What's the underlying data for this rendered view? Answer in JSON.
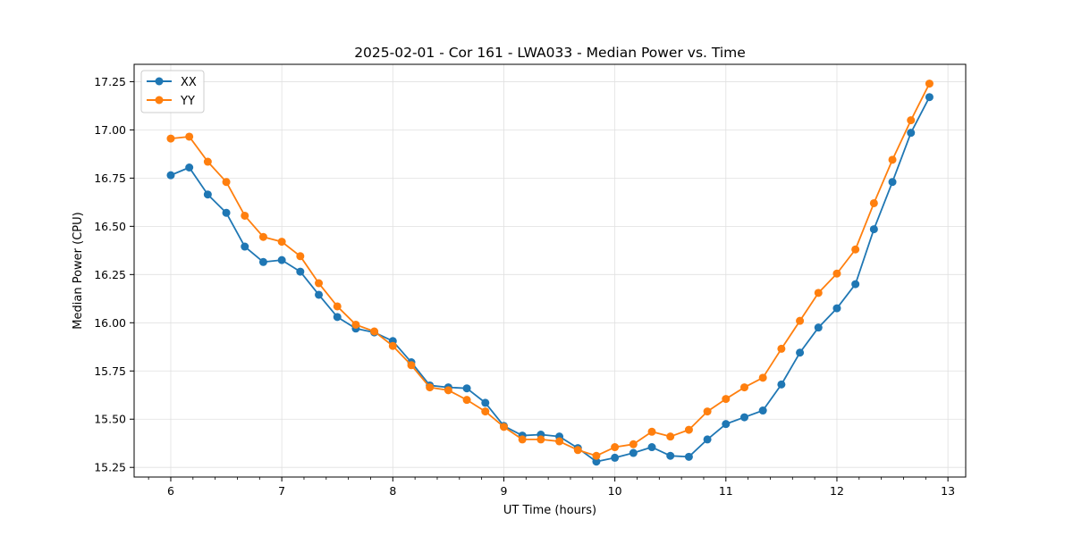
{
  "chart_data": {
    "type": "line",
    "title": "2025-02-01 - Cor 161 - LWA033 - Median Power vs. Time",
    "xlabel": "UT Time (hours)",
    "ylabel": "Median Power (CPU)",
    "xlim": [
      5.67,
      13.16
    ],
    "ylim": [
      15.2,
      17.34
    ],
    "xticks": [
      6,
      7,
      8,
      9,
      10,
      11,
      12,
      13
    ],
    "xtick_labels": [
      "6",
      "7",
      "8",
      "9",
      "10",
      "11",
      "12",
      "13"
    ],
    "yticks": [
      15.25,
      15.5,
      15.75,
      16.0,
      16.25,
      16.5,
      16.75,
      17.0,
      17.25
    ],
    "ytick_labels": [
      "15.25",
      "15.50",
      "15.75",
      "16.00",
      "16.25",
      "16.50",
      "16.75",
      "17.00",
      "17.25"
    ],
    "grid": true,
    "legend_position": "top-left",
    "x": [
      6.0,
      6.1667,
      6.3333,
      6.5,
      6.6667,
      6.8333,
      7.0,
      7.1667,
      7.3333,
      7.5,
      7.6667,
      7.8333,
      8.0,
      8.1667,
      8.3333,
      8.5,
      8.6667,
      8.8333,
      9.0,
      9.1667,
      9.3333,
      9.5,
      9.6667,
      9.8333,
      10.0,
      10.1667,
      10.3333,
      10.5,
      10.6667,
      10.8333,
      11.0,
      11.1667,
      11.3333,
      11.5,
      11.6667,
      11.8333,
      12.0,
      12.1667,
      12.3333,
      12.5,
      12.6667,
      12.8333
    ],
    "series": [
      {
        "name": "XX",
        "color": "#1f77b4",
        "values": [
          16.765,
          16.805,
          16.665,
          16.57,
          16.395,
          16.315,
          16.325,
          16.265,
          16.145,
          16.03,
          15.97,
          15.95,
          15.905,
          15.795,
          15.675,
          15.665,
          15.66,
          15.585,
          15.465,
          15.415,
          15.42,
          15.41,
          15.35,
          15.28,
          15.3,
          15.325,
          15.355,
          15.31,
          15.305,
          15.395,
          15.475,
          15.51,
          15.545,
          15.68,
          15.845,
          15.975,
          16.075,
          16.2,
          16.485,
          16.73,
          16.985,
          17.17
        ]
      },
      {
        "name": "YY",
        "color": "#ff7f0e",
        "values": [
          16.955,
          16.965,
          16.835,
          16.73,
          16.555,
          16.445,
          16.42,
          16.345,
          16.205,
          16.085,
          15.99,
          15.955,
          15.88,
          15.78,
          15.665,
          15.65,
          15.6,
          15.54,
          15.46,
          15.395,
          15.395,
          15.385,
          15.34,
          15.31,
          15.355,
          15.37,
          15.435,
          15.41,
          15.445,
          15.54,
          15.605,
          15.665,
          15.715,
          15.865,
          16.01,
          16.155,
          16.255,
          16.38,
          16.62,
          16.845,
          17.05,
          17.24
        ]
      }
    ]
  }
}
